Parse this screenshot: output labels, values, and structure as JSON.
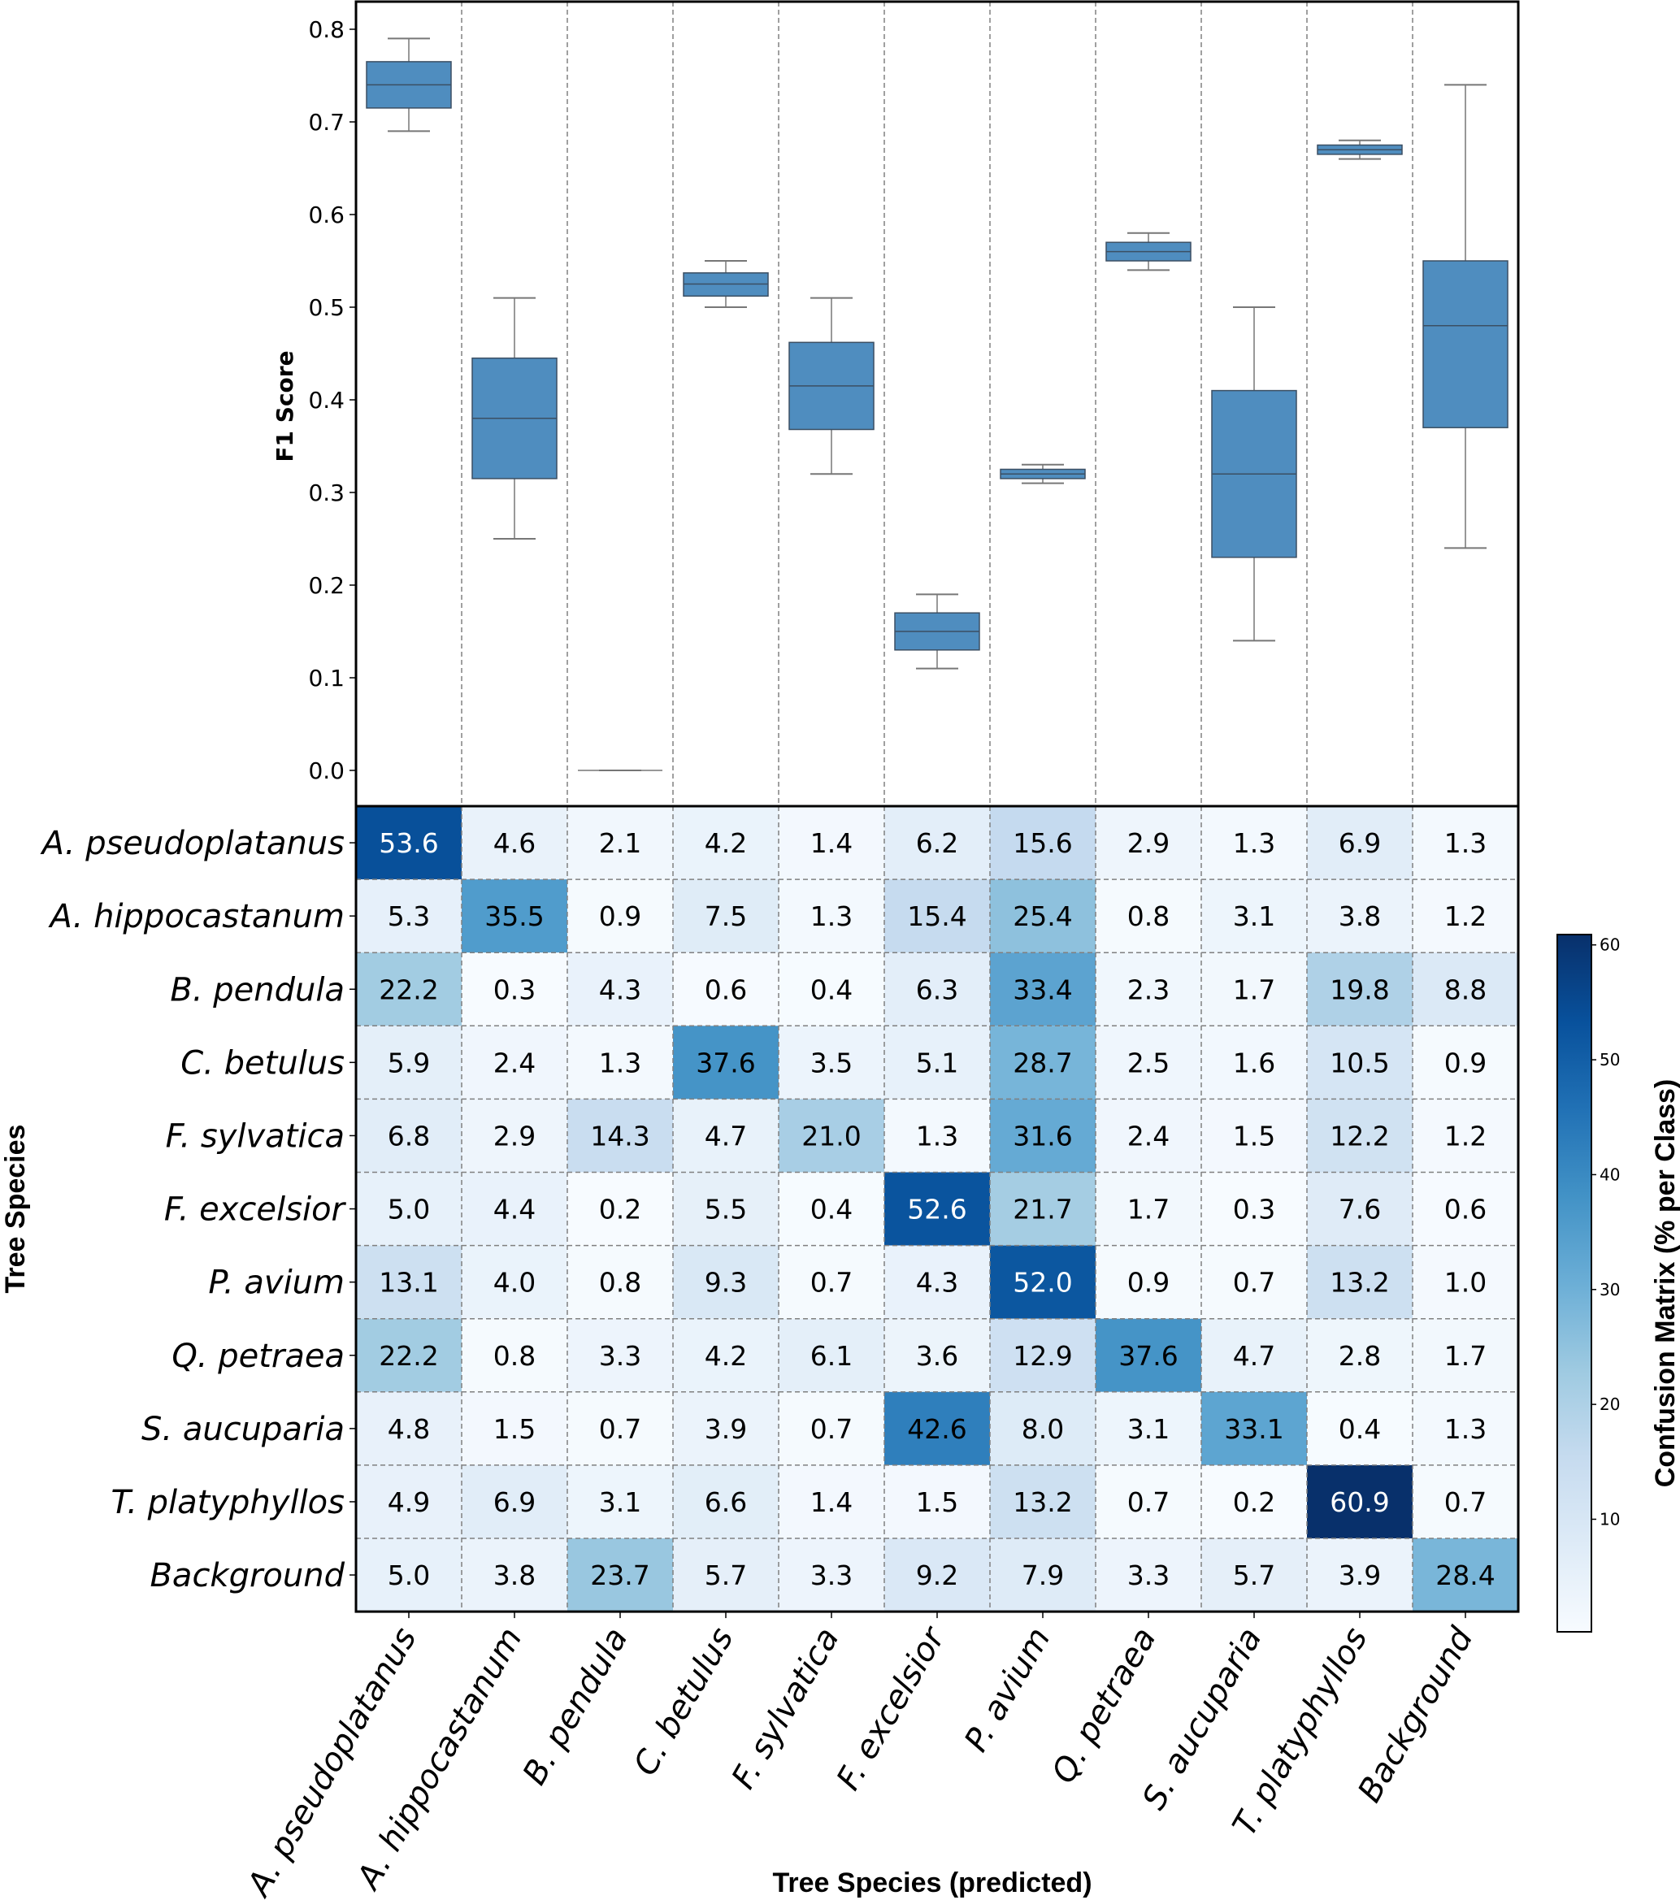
{
  "chart_data": [
    {
      "type": "box",
      "ylabel": "F1 Score",
      "ylim": [
        -0.08,
        0.83
      ],
      "yticks": [
        "0.0",
        "0.1",
        "0.2",
        "0.3",
        "0.4",
        "0.5",
        "0.6",
        "0.7",
        "0.8"
      ],
      "grid": "vertical dashed separators between categories",
      "box_color": "#4f8dbf",
      "categories": [
        "A. pseudoplatanus",
        "A. hippocastanum",
        "B. pendula",
        "C. betulus",
        "F. sylvatica",
        "F. excelsior",
        "P. avium",
        "Q. petraea",
        "S. aucuparia",
        "T. platyphyllos",
        "Background"
      ],
      "boxes": [
        {
          "whisker_low": 0.69,
          "q1": 0.715,
          "median": 0.74,
          "q3": 0.765,
          "whisker_high": 0.79
        },
        {
          "whisker_low": 0.25,
          "q1": 0.315,
          "median": 0.38,
          "q3": 0.445,
          "whisker_high": 0.51
        },
        {
          "whisker_low": 0.0,
          "q1": 0.0,
          "median": 0.0,
          "q3": 0.0,
          "whisker_high": 0.0
        },
        {
          "whisker_low": 0.5,
          "q1": 0.512,
          "median": 0.525,
          "q3": 0.537,
          "whisker_high": 0.55
        },
        {
          "whisker_low": 0.32,
          "q1": 0.368,
          "median": 0.415,
          "q3": 0.462,
          "whisker_high": 0.51
        },
        {
          "whisker_low": 0.11,
          "q1": 0.13,
          "median": 0.15,
          "q3": 0.17,
          "whisker_high": 0.19
        },
        {
          "whisker_low": 0.31,
          "q1": 0.315,
          "median": 0.32,
          "q3": 0.325,
          "whisker_high": 0.33
        },
        {
          "whisker_low": 0.54,
          "q1": 0.55,
          "median": 0.56,
          "q3": 0.57,
          "whisker_high": 0.58
        },
        {
          "whisker_low": 0.14,
          "q1": 0.23,
          "median": 0.32,
          "q3": 0.41,
          "whisker_high": 0.5
        },
        {
          "whisker_low": 0.66,
          "q1": 0.665,
          "median": 0.67,
          "q3": 0.675,
          "whisker_high": 0.68
        },
        {
          "whisker_low": 0.24,
          "q1": 0.37,
          "median": 0.48,
          "q3": 0.55,
          "whisker_high": 0.74
        }
      ]
    },
    {
      "type": "heatmap",
      "title": "",
      "xlabel": "Tree Species (predicted)",
      "ylabel": "Tree Species",
      "colorbar_label": "Confusion Matrix (% per Class)",
      "colormap": "Blues",
      "colorbar_range": [
        0.2,
        60.9
      ],
      "colorbar_ticks": [
        "10",
        "20",
        "30",
        "40",
        "50",
        "60"
      ],
      "rows": [
        "A. pseudoplatanus",
        "A. hippocastanum",
        "B. pendula",
        "C. betulus",
        "F. sylvatica",
        "F. excelsior",
        "P. avium",
        "Q. petraea",
        "S. aucuparia",
        "T. platyphyllos",
        "Background"
      ],
      "columns": [
        "A. pseudoplatanus",
        "A. hippocastanum",
        "B. pendula",
        "C. betulus",
        "F. sylvatica",
        "F. excelsior",
        "P. avium",
        "Q. petraea",
        "S. aucuparia",
        "T. platyphyllos",
        "Background"
      ],
      "values": [
        [
          53.6,
          4.6,
          2.1,
          4.2,
          1.4,
          6.2,
          15.6,
          2.9,
          1.3,
          6.9,
          1.3
        ],
        [
          5.3,
          35.5,
          0.9,
          7.5,
          1.3,
          15.4,
          25.4,
          0.8,
          3.1,
          3.8,
          1.2
        ],
        [
          22.2,
          0.3,
          4.3,
          0.6,
          0.4,
          6.3,
          33.4,
          2.3,
          1.7,
          19.8,
          8.8
        ],
        [
          5.9,
          2.4,
          1.3,
          37.6,
          3.5,
          5.1,
          28.7,
          2.5,
          1.6,
          10.5,
          0.9
        ],
        [
          6.8,
          2.9,
          14.3,
          4.7,
          21.0,
          1.3,
          31.6,
          2.4,
          1.5,
          12.2,
          1.2
        ],
        [
          5.0,
          4.4,
          0.2,
          5.5,
          0.4,
          52.6,
          21.7,
          1.7,
          0.3,
          7.6,
          0.6
        ],
        [
          13.1,
          4.0,
          0.8,
          9.3,
          0.7,
          4.3,
          52.0,
          0.9,
          0.7,
          13.2,
          1.0
        ],
        [
          22.2,
          0.8,
          3.3,
          4.2,
          6.1,
          3.6,
          12.9,
          37.6,
          4.7,
          2.8,
          1.7
        ],
        [
          4.8,
          1.5,
          0.7,
          3.9,
          0.7,
          42.6,
          8.0,
          3.1,
          33.1,
          0.4,
          1.3
        ],
        [
          4.9,
          6.9,
          3.1,
          6.6,
          1.4,
          1.5,
          13.2,
          0.7,
          0.2,
          60.9,
          0.7
        ],
        [
          5.0,
          3.8,
          23.7,
          5.7,
          3.3,
          9.2,
          7.9,
          3.3,
          5.7,
          3.9,
          28.4
        ]
      ]
    }
  ]
}
